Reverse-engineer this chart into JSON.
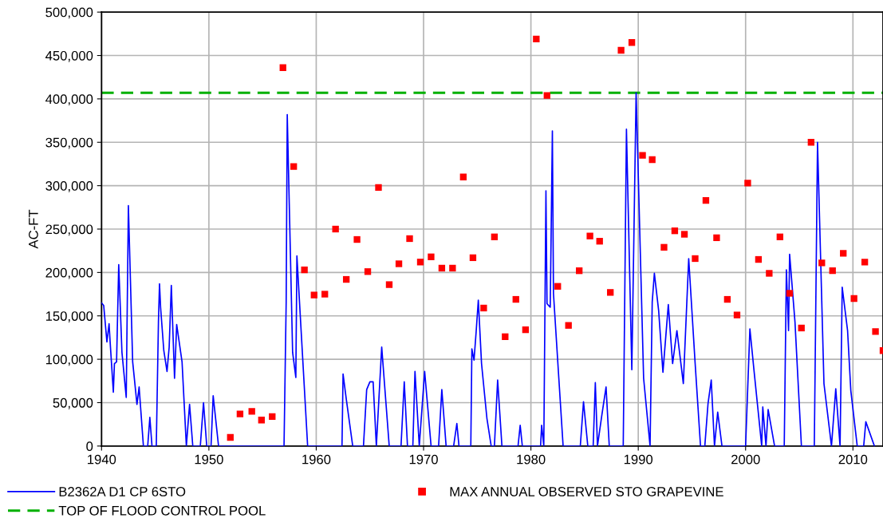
{
  "chart_data": {
    "type": "line",
    "ylabel": "AC-FT",
    "xlim": [
      1940,
      2012.8
    ],
    "ylim": [
      0,
      500000
    ],
    "xticks": [
      1940,
      1950,
      1960,
      1970,
      1980,
      1990,
      2000,
      2010
    ],
    "yticks": [
      {
        "value": 0,
        "label": "0"
      },
      {
        "value": 50000,
        "label": "50,000"
      },
      {
        "value": 100000,
        "label": "100,000"
      },
      {
        "value": 150000,
        "label": "150,000"
      },
      {
        "value": 200000,
        "label": "200,000"
      },
      {
        "value": 250000,
        "label": "250,000"
      },
      {
        "value": 300000,
        "label": "300,000"
      },
      {
        "value": 350000,
        "label": "350,000"
      },
      {
        "value": 400000,
        "label": "400,000"
      },
      {
        "value": 450000,
        "label": "450,000"
      },
      {
        "value": 500000,
        "label": "500,000"
      }
    ],
    "grid": true,
    "legend": "bottom",
    "series": [
      {
        "name": "B2362A D1 CP 6STO",
        "color": "#0000ff",
        "line_style": "solid",
        "x": [
          1940.0,
          1940.2,
          1940.5,
          1940.7,
          1940.8,
          1941.1,
          1941.2,
          1941.4,
          1941.6,
          1941.9,
          1942.3,
          1942.5,
          1942.9,
          1943.3,
          1943.5,
          1943.9,
          1944.3,
          1944.5,
          1944.7,
          1945.1,
          1945.3,
          1945.4,
          1945.5,
          1945.8,
          1946.1,
          1946.3,
          1946.5,
          1946.8,
          1947.0,
          1947.5,
          1947.9,
          1948.2,
          1948.5,
          1949.2,
          1949.5,
          1949.8,
          1950.2,
          1950.4,
          1950.9,
          1957.0,
          1957.2,
          1957.3,
          1957.8,
          1958.1,
          1958.2,
          1959.2,
          1962.4,
          1962.5,
          1962.8,
          1963.4,
          1964.4,
          1964.7,
          1965.0,
          1965.3,
          1965.6,
          1966.1,
          1966.8,
          1967.9,
          1968.2,
          1968.5,
          1969.0,
          1969.2,
          1969.6,
          1970.1,
          1970.7,
          1971.4,
          1971.7,
          1972.1,
          1972.8,
          1973.1,
          1973.3,
          1974.4,
          1974.5,
          1974.7,
          1974.9,
          1975.1,
          1975.4,
          1975.9,
          1976.3,
          1976.6,
          1976.9,
          1977.3,
          1978.8,
          1979.0,
          1979.2,
          1980.9,
          1981.0,
          1981.2,
          1981.4,
          1981.5,
          1981.8,
          1982.0,
          1982.1,
          1982.6,
          1983.0,
          1984.6,
          1984.9,
          1985.3,
          1985.8,
          1986.0,
          1986.2,
          1986.6,
          1987.0,
          1987.3,
          1988.6,
          1988.9,
          1989.4,
          1989.8,
          1990.5,
          1991.1,
          1991.3,
          1991.5,
          1991.9,
          1992.3,
          1992.8,
          1993.2,
          1993.6,
          1994.2,
          1994.7,
          1995.3,
          1995.8,
          1996.2,
          1996.5,
          1996.8,
          1997.1,
          1997.4,
          1997.8,
          2000.0,
          2000.4,
          2000.8,
          2001.5,
          2001.6,
          2001.9,
          2002.1,
          2002.7,
          2003.6,
          2003.8,
          2004.0,
          2004.1,
          2004.6,
          2005.2,
          2006.4,
          2006.7,
          2007.3,
          2008.0,
          2008.4,
          2008.8,
          2009.0,
          2009.5,
          2009.8,
          2010.4,
          2011.0,
          2011.2,
          2012.0
        ],
        "values": [
          165000,
          162000,
          120000,
          141000,
          120000,
          62000,
          95000,
          97000,
          209000,
          108000,
          56000,
          277000,
          97000,
          48000,
          68000,
          0,
          0,
          33000,
          0,
          0,
          143000,
          187000,
          160000,
          110000,
          86000,
          114000,
          185000,
          78000,
          140000,
          97000,
          0,
          48000,
          0,
          0,
          50000,
          0,
          0,
          58000,
          0,
          0,
          166000,
          382000,
          108000,
          79000,
          219000,
          0,
          0,
          83000,
          54000,
          0,
          0,
          65000,
          74000,
          74000,
          0,
          114000,
          0,
          0,
          74000,
          0,
          0,
          86000,
          0,
          86000,
          0,
          0,
          65000,
          0,
          0,
          26000,
          0,
          0,
          112000,
          99000,
          132000,
          168000,
          95000,
          32000,
          0,
          0,
          76000,
          0,
          0,
          24000,
          0,
          0,
          24000,
          0,
          294000,
          164000,
          160000,
          363000,
          176000,
          78000,
          0,
          0,
          51000,
          0,
          0,
          73000,
          0,
          35000,
          68000,
          0,
          0,
          365000,
          88000,
          407000,
          78000,
          0,
          166000,
          199000,
          156000,
          85000,
          163000,
          95000,
          133000,
          72000,
          216000,
          95000,
          0,
          0,
          49000,
          76000,
          0,
          39000,
          0,
          0,
          135000,
          85000,
          0,
          45000,
          0,
          42000,
          0,
          0,
          203000,
          133000,
          221000,
          143000,
          0,
          0,
          350000,
          72000,
          0,
          66000,
          0,
          183000,
          133000,
          64000,
          0,
          0,
          28000,
          0
        ]
      },
      {
        "name": "MAX ANNUAL OBSERVED STO GRAPEVINE",
        "type": "scatter",
        "color": "#ff0000",
        "marker": "square",
        "x": [
          1952.0,
          1952.9,
          1954.0,
          1954.9,
          1955.9,
          1956.9,
          1957.9,
          1958.9,
          1959.8,
          1960.8,
          1961.8,
          1962.8,
          1963.8,
          1964.8,
          1965.8,
          1966.8,
          1967.7,
          1968.7,
          1969.7,
          1970.7,
          1971.7,
          1972.7,
          1973.7,
          1974.6,
          1975.6,
          1976.6,
          1977.6,
          1978.6,
          1979.5,
          1980.5,
          1981.5,
          1982.5,
          1983.5,
          1984.5,
          1985.5,
          1986.4,
          1987.4,
          1988.4,
          1989.4,
          1990.4,
          1991.3,
          1992.4,
          1993.4,
          1994.3,
          1995.3,
          1996.3,
          1997.3,
          1998.3,
          1999.2,
          2000.2,
          2001.2,
          2002.2,
          2003.2,
          2004.1,
          2005.2,
          2006.1,
          2007.1,
          2008.1,
          2009.1,
          2010.1,
          2011.1,
          2012.1,
          2012.8
        ],
        "values": [
          10000,
          37000,
          40000,
          30000,
          34000,
          436000,
          322000,
          203000,
          174000,
          175000,
          250000,
          192000,
          238000,
          201000,
          298000,
          186000,
          210000,
          239000,
          212000,
          218000,
          205000,
          205000,
          310000,
          217000,
          159000,
          241000,
          126000,
          169000,
          134000,
          469000,
          404000,
          184000,
          139000,
          202000,
          242000,
          236000,
          177000,
          456000,
          465000,
          335000,
          330000,
          229000,
          248000,
          244000,
          216000,
          283000,
          240000,
          169000,
          151000,
          303000,
          215000,
          199000,
          241000,
          176000,
          136000,
          350000,
          211000,
          202000,
          222000,
          170000,
          212000,
          132000,
          110000
        ]
      }
    ],
    "ref_lines": [
      {
        "axis": "y",
        "value": 407000,
        "label": "TOP OF FLOOD CONTROL POOL",
        "color": "#00b000",
        "line_style": "dashed"
      }
    ]
  }
}
